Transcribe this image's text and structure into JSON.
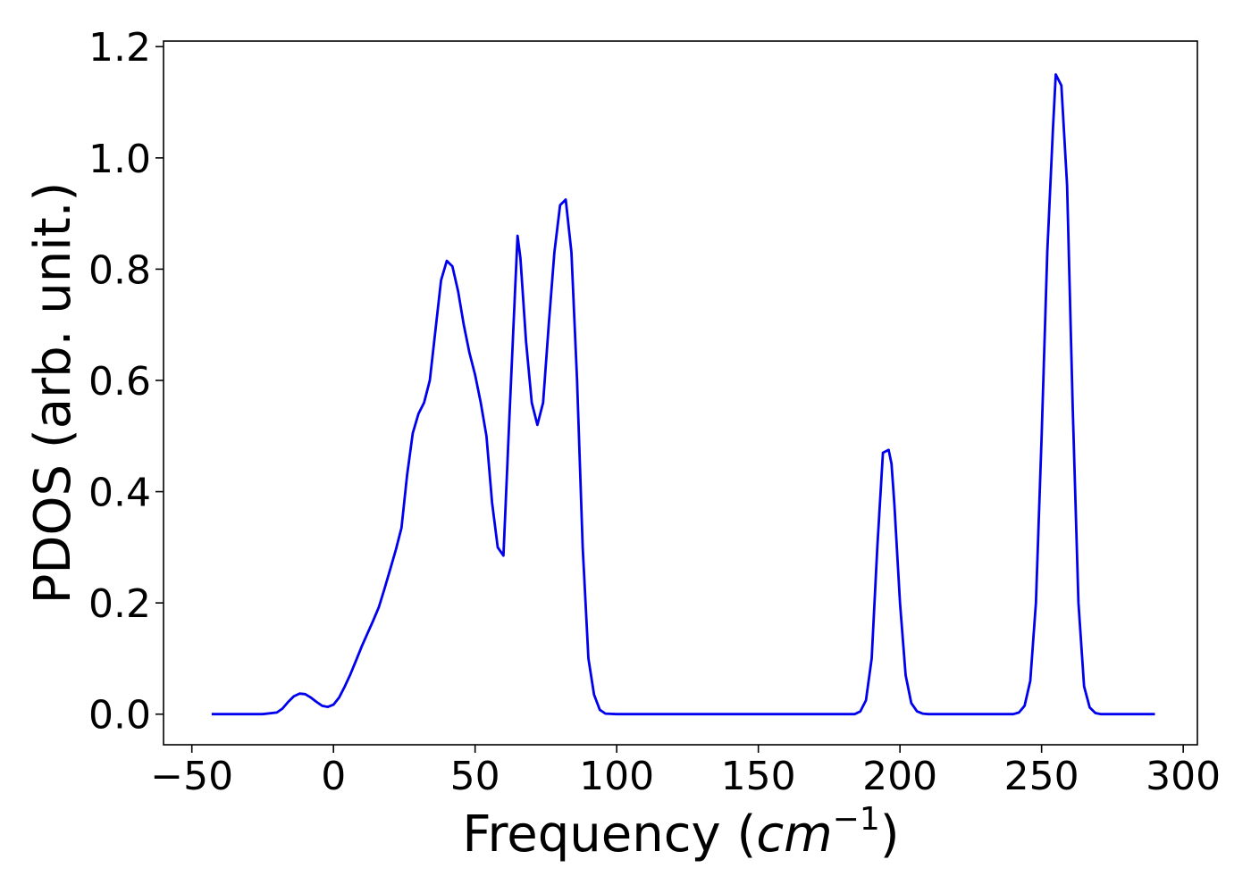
{
  "chart_data": {
    "type": "line",
    "title": "",
    "xlabel_prefix": "Frequency (",
    "xlabel_italic": "cm",
    "xlabel_sup": "−1",
    "xlabel_suffix": ")",
    "ylabel": "PDOS (arb. unit.)",
    "xlim": [
      -60,
      305
    ],
    "ylim": [
      -0.055,
      1.21
    ],
    "xticks": [
      -50,
      0,
      50,
      100,
      150,
      200,
      250,
      300
    ],
    "xtick_labels": [
      "−50",
      "0",
      "50",
      "100",
      "150",
      "200",
      "250",
      "300"
    ],
    "yticks": [
      0.0,
      0.2,
      0.4,
      0.6,
      0.8,
      1.0,
      1.2
    ],
    "ytick_labels": [
      "0.0",
      "0.2",
      "0.4",
      "0.6",
      "0.8",
      "1.0",
      "1.2"
    ],
    "grid": false,
    "legend": "none",
    "line_color": "#0000ee",
    "series": [
      {
        "x": [
          -43,
          -25,
          -20,
          -18,
          -16,
          -14,
          -12,
          -10,
          -8,
          -6,
          -4,
          -2,
          0,
          2,
          4,
          6,
          8,
          10,
          12,
          14,
          16,
          18,
          20,
          22,
          24,
          26,
          28,
          30,
          32,
          34,
          36,
          38,
          40,
          42,
          44,
          46,
          48,
          50,
          52,
          54,
          56,
          58,
          60,
          62,
          64,
          65,
          66,
          68,
          70,
          72,
          74,
          76,
          78,
          80,
          82,
          84,
          86,
          88,
          90,
          92,
          94,
          96,
          100,
          150,
          184,
          186,
          188,
          190,
          192,
          194,
          196,
          197,
          198,
          200,
          202,
          204,
          206,
          208,
          210,
          220,
          240,
          242,
          244,
          246,
          248,
          250,
          252,
          254,
          255,
          257,
          259,
          261,
          263,
          265,
          267,
          269,
          271,
          275,
          290
        ],
        "y": [
          0.0,
          0.0,
          0.003,
          0.01,
          0.022,
          0.032,
          0.037,
          0.036,
          0.03,
          0.022,
          0.015,
          0.013,
          0.017,
          0.03,
          0.05,
          0.072,
          0.097,
          0.122,
          0.145,
          0.168,
          0.192,
          0.225,
          0.26,
          0.295,
          0.335,
          0.43,
          0.505,
          0.54,
          0.56,
          0.6,
          0.69,
          0.78,
          0.815,
          0.805,
          0.76,
          0.7,
          0.65,
          0.61,
          0.56,
          0.5,
          0.38,
          0.3,
          0.285,
          0.52,
          0.75,
          0.86,
          0.82,
          0.67,
          0.56,
          0.52,
          0.56,
          0.7,
          0.83,
          0.915,
          0.925,
          0.83,
          0.6,
          0.3,
          0.1,
          0.035,
          0.008,
          0.001,
          0.0,
          0.0,
          0.0,
          0.005,
          0.025,
          0.1,
          0.3,
          0.47,
          0.475,
          0.45,
          0.38,
          0.2,
          0.07,
          0.02,
          0.005,
          0.001,
          0.0,
          0.0,
          0.0,
          0.003,
          0.015,
          0.06,
          0.2,
          0.5,
          0.83,
          1.05,
          1.15,
          1.13,
          0.95,
          0.55,
          0.2,
          0.05,
          0.012,
          0.002,
          0.0,
          0.0,
          0.0
        ]
      }
    ]
  }
}
